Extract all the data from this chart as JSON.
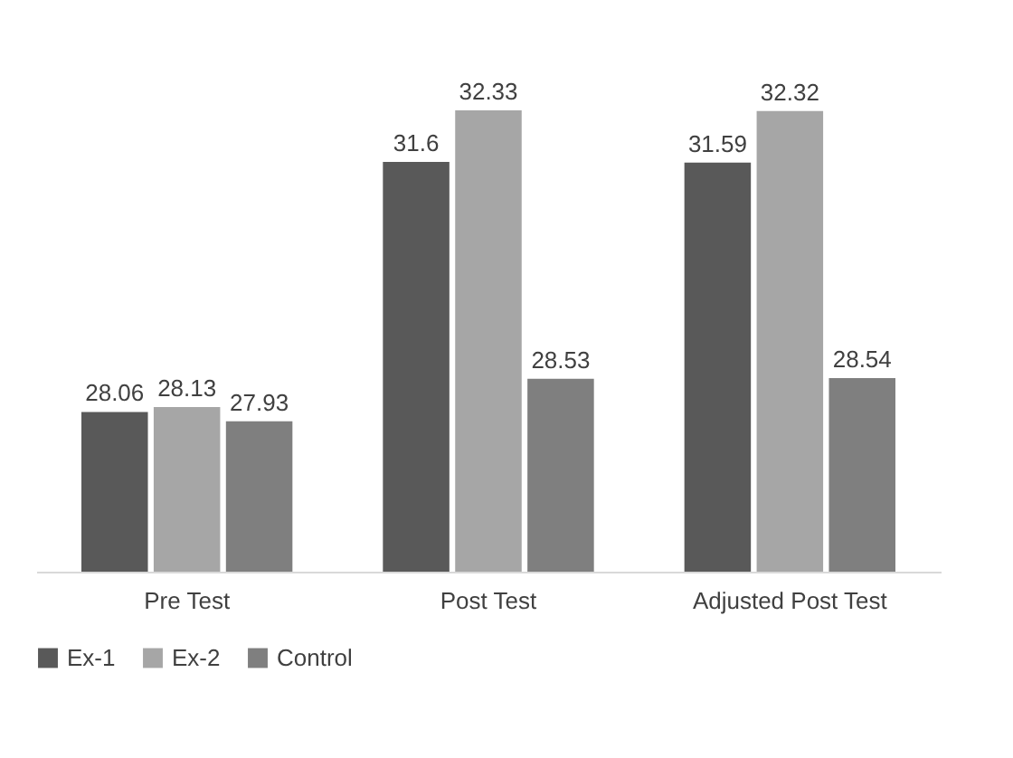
{
  "chart_data": {
    "type": "bar",
    "categories": [
      "Pre Test",
      "Post Test",
      "Adjusted Post Test"
    ],
    "series": [
      {
        "name": "Ex-1",
        "color": "#595959",
        "values": [
          28.06,
          31.6,
          31.59
        ]
      },
      {
        "name": "Ex-2",
        "color": "#a6a6a6",
        "values": [
          28.13,
          32.33,
          32.32
        ]
      },
      {
        "name": "Control",
        "color": "#7f7f7f",
        "values": [
          27.93,
          28.53,
          28.54
        ]
      }
    ],
    "ylim": [
      25.8,
      32.33
    ],
    "data_labels": true,
    "legend": "bottom",
    "grid": false,
    "tick_labels": "x"
  }
}
